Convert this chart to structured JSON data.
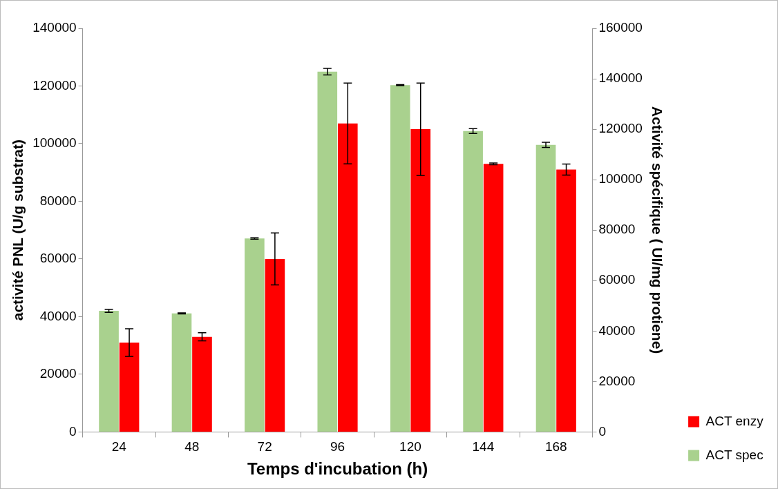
{
  "chart_data": {
    "type": "bar",
    "xlabel": "Temps d'incubation (h)",
    "ylabel": "activité PNL (U/g substrat)",
    "y2label": "Activité spécifique ( UI/mg protiene)",
    "categories": [
      "24",
      "48",
      "72",
      "96",
      "120",
      "144",
      "168"
    ],
    "series": [
      {
        "name": "ACT spec",
        "color": "#a9d18e",
        "axis": "y2",
        "values": [
          48000,
          47000,
          76700,
          142800,
          137500,
          119300,
          113800
        ],
        "errors": [
          600,
          200,
          300,
          1300,
          200,
          950,
          1000
        ]
      },
      {
        "name": "ACT enzy",
        "color": "#ff0000",
        "values": [
          31000,
          33000,
          60000,
          107000,
          105000,
          93000,
          91000
        ],
        "errors": [
          4800,
          1400,
          9000,
          14000,
          16000,
          300,
          1900
        ]
      }
    ],
    "ylim": [
      0,
      140000
    ],
    "yticks": [
      0,
      20000,
      40000,
      60000,
      80000,
      100000,
      120000,
      140000
    ],
    "y2lim": [
      0,
      160000
    ],
    "y2ticks": [
      0,
      20000,
      40000,
      60000,
      80000,
      100000,
      120000,
      140000,
      160000
    ],
    "grid": false,
    "legend": "bottom right"
  }
}
